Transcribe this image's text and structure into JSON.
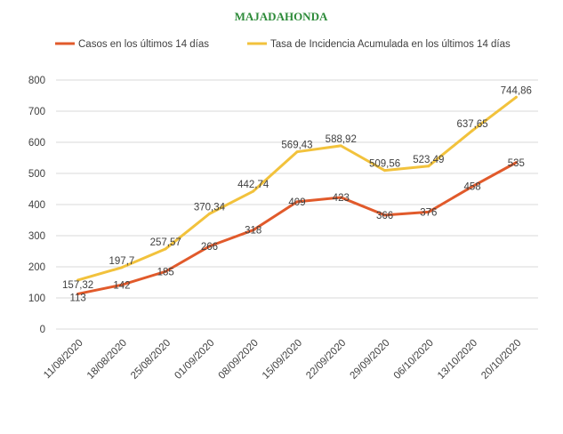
{
  "chart_data": {
    "type": "line",
    "title": "MAJADAHONDA",
    "xlabel": "",
    "ylabel": "",
    "categories": [
      "11/08/2020",
      "18/08/2020",
      "25/08/2020",
      "01/09/2020",
      "08/09/2020",
      "15/09/2020",
      "22/09/2020",
      "29/09/2020",
      "06/10/2020",
      "13/10/2020",
      "20/10/2020"
    ],
    "ylim": [
      0,
      800
    ],
    "yticks": [
      "0",
      "100",
      "200",
      "300",
      "400",
      "500",
      "600",
      "700",
      "800"
    ],
    "grid": true,
    "legend": "top",
    "series": [
      {
        "name": "Casos en los últimos 14 días",
        "color": "#e15a2b",
        "values": [
          113,
          142,
          185,
          266,
          318,
          409,
          423,
          366,
          376,
          458,
          535
        ],
        "labels": [
          "113",
          "142",
          "185",
          "266",
          "318",
          "409",
          "423",
          "366",
          "376",
          "458",
          "535"
        ]
      },
      {
        "name": "Tasa de Incidencia Acumulada en los últimos 14 días",
        "color": "#f2c23c",
        "values": [
          157.32,
          197.7,
          257.57,
          370.34,
          442.74,
          569.43,
          588.92,
          509.56,
          523.49,
          637.65,
          744.86
        ],
        "labels": [
          "157,32",
          "197,7",
          "257,57",
          "370,34",
          "442,74",
          "569,43",
          "588,92",
          "509,56",
          "523,49",
          "637,65",
          "744,86"
        ]
      }
    ]
  }
}
